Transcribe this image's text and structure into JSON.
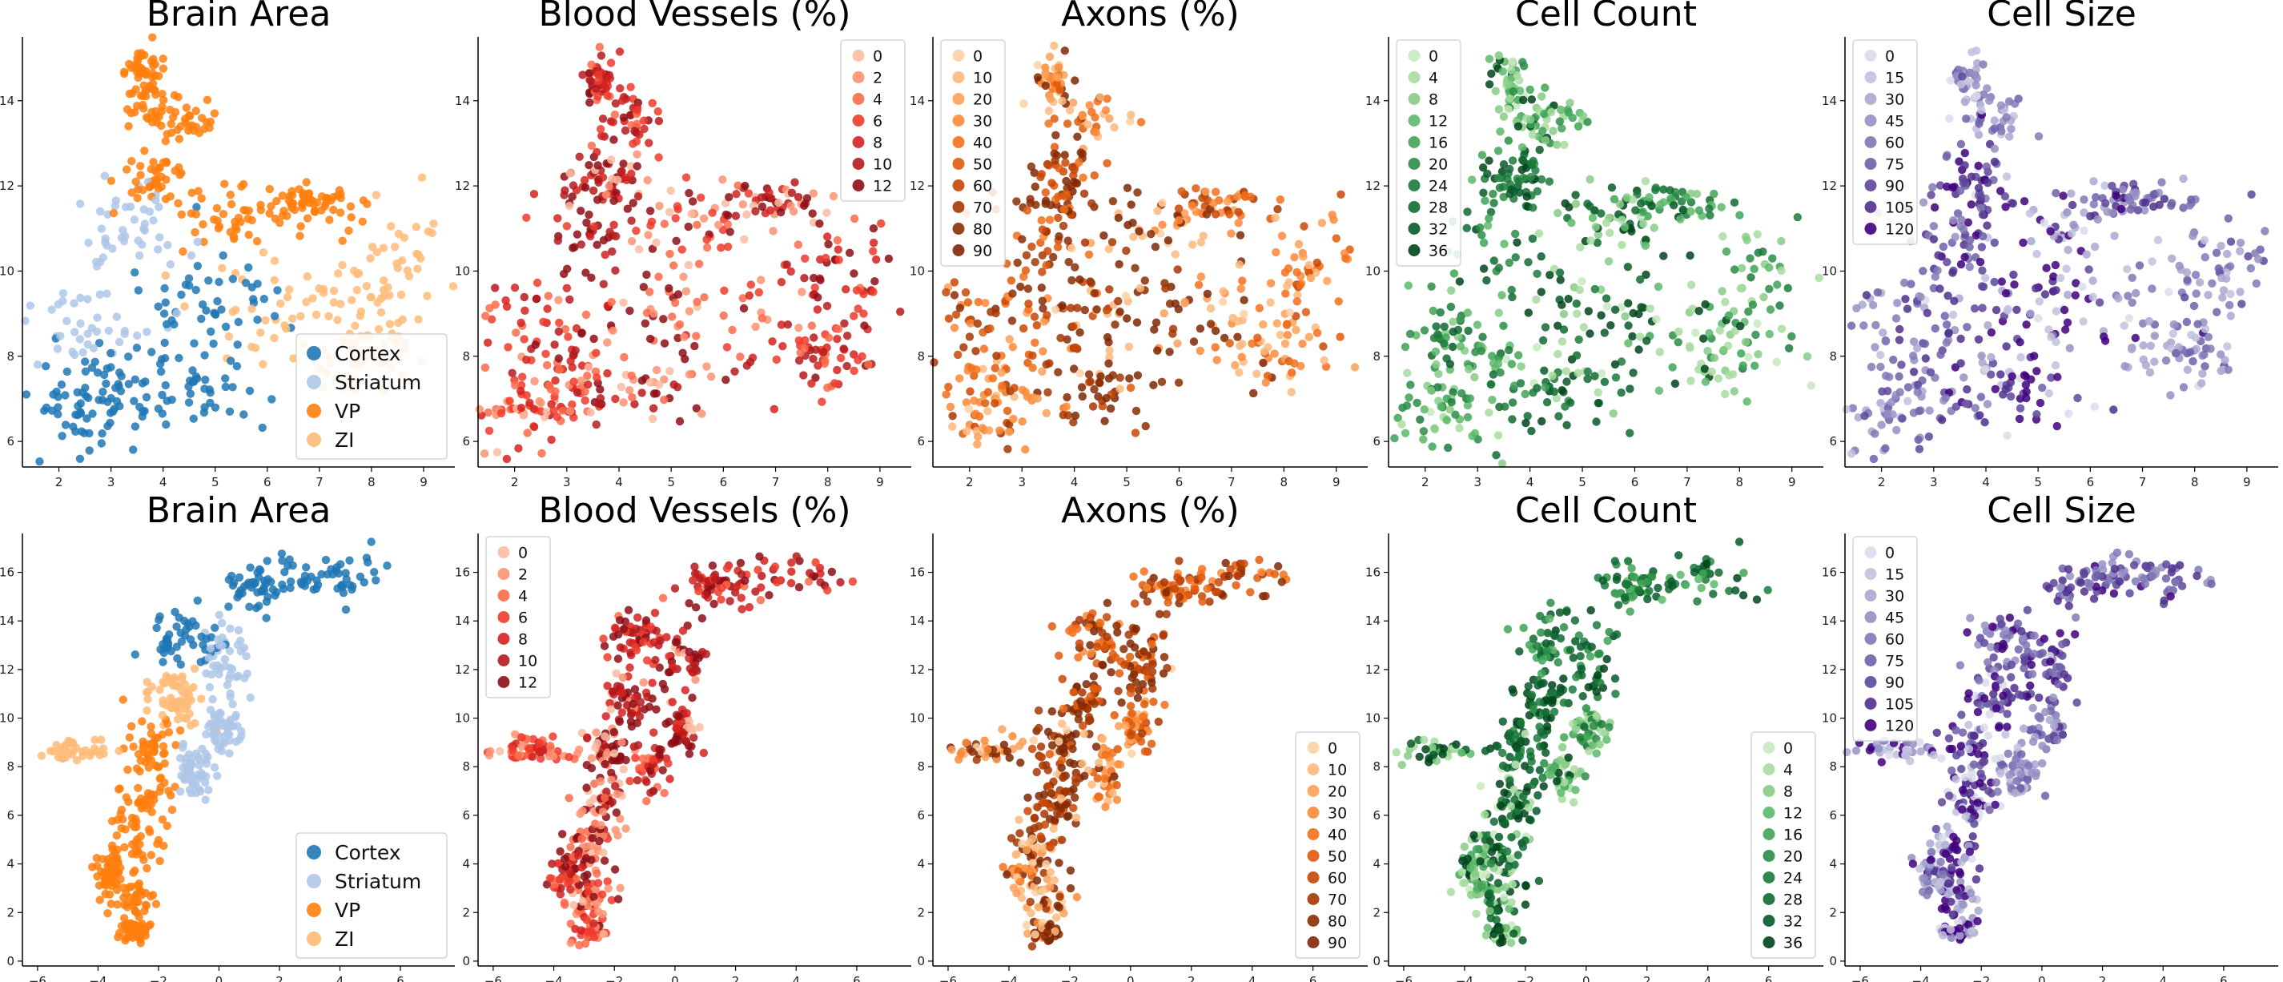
{
  "chart_data": [
    {
      "type": "scatter",
      "title": "Brain Area",
      "legend_position": "bottom-right",
      "legend": {
        "entries": [
          "Cortex",
          "Striatum",
          "VP",
          "ZI"
        ],
        "colors": [
          "#1f77b4",
          "#aec7e8",
          "#ff7f0e",
          "#ffbb78"
        ]
      },
      "xticks": [
        "2",
        "3",
        "4",
        "5",
        "6",
        "7",
        "8",
        "9"
      ],
      "yticks": [
        "6",
        "8",
        "10",
        "12",
        "14"
      ],
      "xlim": [
        1.3,
        9.6
      ],
      "ylim": [
        5.4,
        15.5
      ],
      "layout": "umap_a"
    },
    {
      "type": "scatter",
      "title": "Blood Vessels (%)",
      "legend_position": "top-right",
      "legend": {
        "entries": [
          "0",
          "2",
          "4",
          "6",
          "8",
          "10",
          "12"
        ],
        "colors": [
          "#fcbba1",
          "#fc9272",
          "#fb6a4a",
          "#ef3b2c",
          "#d52220",
          "#b51a1c",
          "#8e0d15"
        ]
      },
      "xticks": [
        "2",
        "3",
        "4",
        "5",
        "6",
        "7",
        "8",
        "9"
      ],
      "yticks": [
        "6",
        "8",
        "10",
        "12",
        "14"
      ],
      "xlim": [
        1.3,
        9.6
      ],
      "ylim": [
        5.4,
        15.5
      ],
      "layout": "umap_a"
    },
    {
      "type": "scatter",
      "title": "Axons (%)",
      "legend_position": "top-left",
      "legend": {
        "entries": [
          "0",
          "10",
          "20",
          "30",
          "40",
          "50",
          "60",
          "70",
          "80",
          "90"
        ],
        "colors": [
          "#fdd0a2",
          "#fdb97c",
          "#fda058",
          "#fd8938",
          "#f3701b",
          "#e05a0c",
          "#c84605",
          "#a63603",
          "#8a2d04",
          "#7f2704"
        ]
      },
      "xticks": [
        "2",
        "3",
        "4",
        "5",
        "6",
        "7",
        "8",
        "9"
      ],
      "yticks": [
        "6",
        "8",
        "10",
        "12",
        "14"
      ],
      "xlim": [
        1.3,
        9.6
      ],
      "ylim": [
        5.4,
        15.5
      ],
      "layout": "umap_a"
    },
    {
      "type": "scatter",
      "title": "Cell Count",
      "legend_position": "top-left",
      "legend": {
        "entries": [
          "0",
          "4",
          "8",
          "12",
          "16",
          "20",
          "24",
          "28",
          "32",
          "36"
        ],
        "colors": [
          "#c7e9c0",
          "#a8dca0",
          "#86cc85",
          "#5db96b",
          "#3ea456",
          "#2a8d46",
          "#1b7a3b",
          "#0f6a31",
          "#075a2a",
          "#00441b"
        ]
      },
      "xticks": [
        "2",
        "3",
        "4",
        "5",
        "6",
        "7",
        "8",
        "9"
      ],
      "yticks": [
        "6",
        "8",
        "10",
        "12",
        "14"
      ],
      "xlim": [
        1.3,
        9.6
      ],
      "ylim": [
        5.4,
        15.5
      ],
      "layout": "umap_a"
    },
    {
      "type": "scatter",
      "title": "Cell Size",
      "legend_position": "top-left",
      "legend": {
        "entries": [
          "0",
          "15",
          "30",
          "45",
          "60",
          "75",
          "90",
          "105",
          "120"
        ],
        "colors": [
          "#dadaeb",
          "#c2c1de",
          "#aaa8d0",
          "#9591c3",
          "#8179b7",
          "#6f60a9",
          "#5e479b",
          "#50308e",
          "#3f007d"
        ]
      },
      "xticks": [
        "2",
        "3",
        "4",
        "5",
        "6",
        "7",
        "8",
        "9"
      ],
      "yticks": [
        "6",
        "8",
        "10",
        "12",
        "14"
      ],
      "xlim": [
        1.3,
        9.6
      ],
      "ylim": [
        5.4,
        15.5
      ],
      "layout": "umap_a"
    },
    {
      "type": "scatter",
      "title": "Brain Area",
      "legend_position": "bottom-right",
      "legend": {
        "entries": [
          "Cortex",
          "Striatum",
          "VP",
          "ZI"
        ],
        "colors": [
          "#1f77b4",
          "#aec7e8",
          "#ff7f0e",
          "#ffbb78"
        ]
      },
      "xticks": [
        "−6",
        "−4",
        "−2",
        "0",
        "2",
        "4",
        "6"
      ],
      "yticks": [
        "0",
        "2",
        "4",
        "6",
        "8",
        "10",
        "12",
        "14",
        "16"
      ],
      "xlim": [
        -6.5,
        7.8
      ],
      "ylim": [
        -0.2,
        17.6
      ],
      "layout": "umap_b"
    },
    {
      "type": "scatter",
      "title": "Blood Vessels (%)",
      "legend_position": "top-left",
      "legend": {
        "entries": [
          "0",
          "2",
          "4",
          "6",
          "8",
          "10",
          "12"
        ],
        "colors": [
          "#fcbba1",
          "#fc9272",
          "#fb6a4a",
          "#ef3b2c",
          "#d52220",
          "#b51a1c",
          "#8e0d15"
        ]
      },
      "xticks": [
        "−6",
        "−4",
        "−2",
        "0",
        "2",
        "4",
        "6"
      ],
      "yticks": [
        "0",
        "2",
        "4",
        "6",
        "8",
        "10",
        "12",
        "14",
        "16"
      ],
      "xlim": [
        -6.5,
        7.8
      ],
      "ylim": [
        -0.2,
        17.6
      ],
      "layout": "umap_b"
    },
    {
      "type": "scatter",
      "title": "Axons (%)",
      "legend_position": "bottom-right",
      "legend": {
        "entries": [
          "0",
          "10",
          "20",
          "30",
          "40",
          "50",
          "60",
          "70",
          "80",
          "90"
        ],
        "colors": [
          "#fdd0a2",
          "#fdb97c",
          "#fda058",
          "#fd8938",
          "#f3701b",
          "#e05a0c",
          "#c84605",
          "#a63603",
          "#8a2d04",
          "#7f2704"
        ]
      },
      "xticks": [
        "−6",
        "−4",
        "−2",
        "0",
        "2",
        "4",
        "6"
      ],
      "yticks": [
        "0",
        "2",
        "4",
        "6",
        "8",
        "10",
        "12",
        "14",
        "16"
      ],
      "xlim": [
        -6.5,
        7.8
      ],
      "ylim": [
        -0.2,
        17.6
      ],
      "layout": "umap_b"
    },
    {
      "type": "scatter",
      "title": "Cell Count",
      "legend_position": "bottom-right",
      "legend": {
        "entries": [
          "0",
          "4",
          "8",
          "12",
          "16",
          "20",
          "24",
          "28",
          "32",
          "36"
        ],
        "colors": [
          "#c7e9c0",
          "#a8dca0",
          "#86cc85",
          "#5db96b",
          "#3ea456",
          "#2a8d46",
          "#1b7a3b",
          "#0f6a31",
          "#075a2a",
          "#00441b"
        ]
      },
      "xticks": [
        "−6",
        "−4",
        "−2",
        "0",
        "2",
        "4",
        "6"
      ],
      "yticks": [
        "0",
        "2",
        "4",
        "6",
        "8",
        "10",
        "12",
        "14",
        "16"
      ],
      "xlim": [
        -6.5,
        7.8
      ],
      "ylim": [
        -0.2,
        17.6
      ],
      "layout": "umap_b"
    },
    {
      "type": "scatter",
      "title": "Cell Size",
      "legend_position": "top-left",
      "legend": {
        "entries": [
          "0",
          "15",
          "30",
          "45",
          "60",
          "75",
          "90",
          "105",
          "120"
        ],
        "colors": [
          "#dadaeb",
          "#c2c1de",
          "#aaa8d0",
          "#9591c3",
          "#8179b7",
          "#6f60a9",
          "#5e479b",
          "#50308e",
          "#3f007d"
        ]
      },
      "xticks": [
        "−6",
        "−4",
        "−2",
        "0",
        "2",
        "4",
        "6"
      ],
      "yticks": [
        "0",
        "2",
        "4",
        "6",
        "8",
        "10",
        "12",
        "14",
        "16"
      ],
      "xlim": [
        -6.5,
        7.8
      ],
      "ylim": [
        -0.2,
        17.6
      ],
      "layout": "umap_b"
    }
  ]
}
